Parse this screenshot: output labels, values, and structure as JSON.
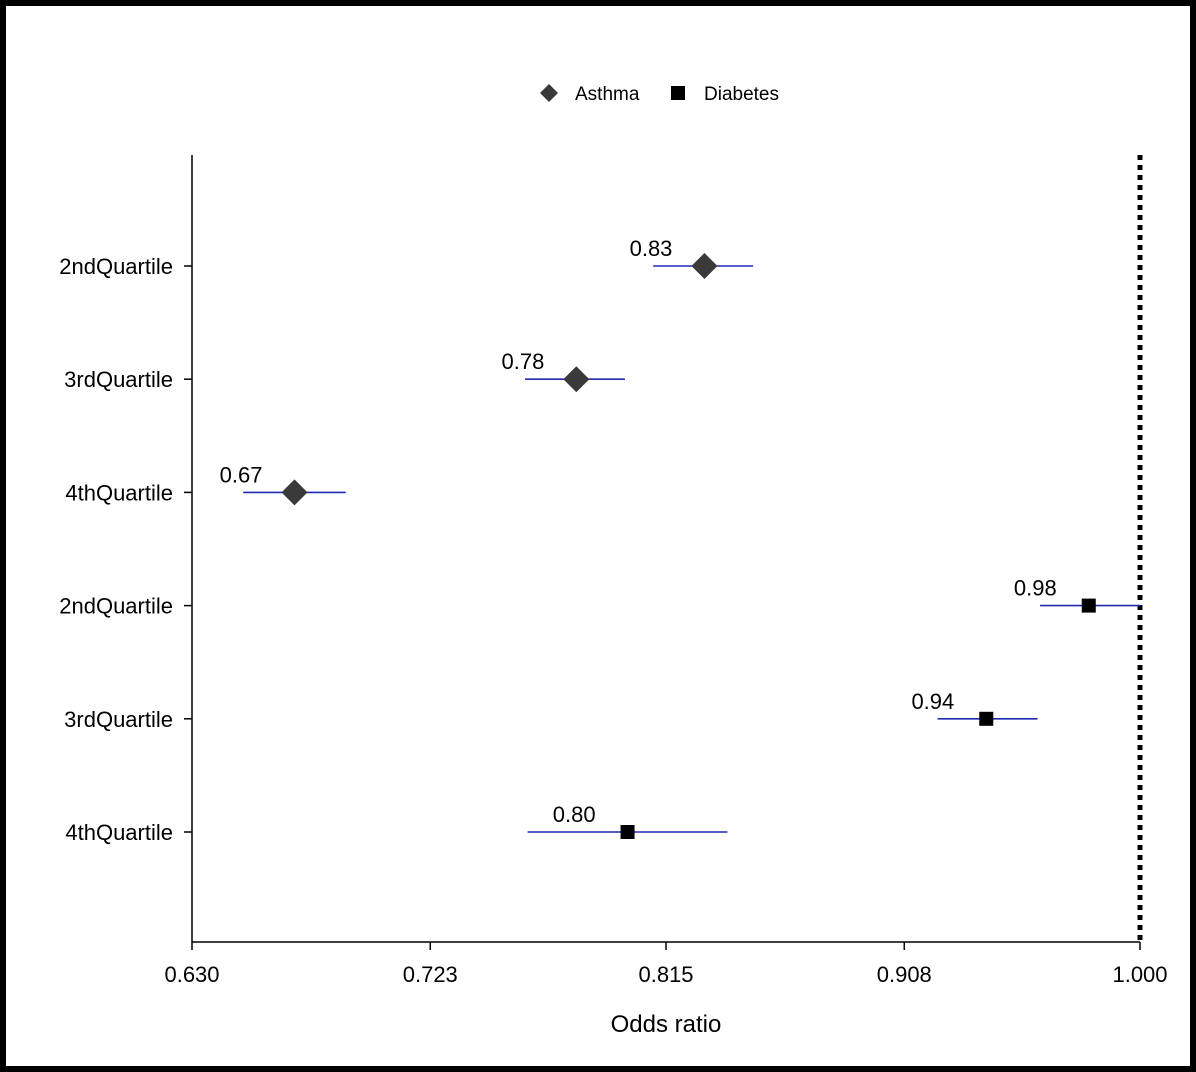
{
  "chart_data": {
    "type": "forest",
    "xlabel": "Odds ratio",
    "xlim": [
      0.63,
      1.0
    ],
    "xticks": [
      "0.630",
      "0.723",
      "0.815",
      "0.908",
      "1.000"
    ],
    "reference_line": 1.0,
    "legend": {
      "placement": "top-center",
      "entries": [
        {
          "name": "Asthma",
          "marker": "diamond"
        },
        {
          "name": "Diabetes",
          "marker": "square"
        }
      ]
    },
    "series": [
      {
        "name": "Asthma",
        "marker": "diamond",
        "points": [
          {
            "category": "2ndQuartile",
            "value": 0.83,
            "label": "0.83",
            "ci": [
              0.81,
              0.849
            ]
          },
          {
            "category": "3rdQuartile",
            "value": 0.78,
            "label": "0.78",
            "ci": [
              0.76,
              0.799
            ]
          },
          {
            "category": "4thQuartile",
            "value": 0.67,
            "label": "0.67",
            "ci": [
              0.65,
              0.69
            ]
          }
        ]
      },
      {
        "name": "Diabetes",
        "marker": "square",
        "points": [
          {
            "category": "2ndQuartile",
            "value": 0.98,
            "label": "0.98",
            "ci": [
              0.961,
              1.0
            ]
          },
          {
            "category": "3rdQuartile",
            "value": 0.94,
            "label": "0.94",
            "ci": [
              0.921,
              0.96
            ]
          },
          {
            "category": "4thQuartile",
            "value": 0.8,
            "label": "0.80",
            "ci": [
              0.761,
              0.839
            ]
          }
        ]
      }
    ],
    "colors": {
      "marker": "#3a3a3a",
      "square": "#000000",
      "ci_line": "#1f2bb5",
      "axis": "#000000"
    }
  }
}
